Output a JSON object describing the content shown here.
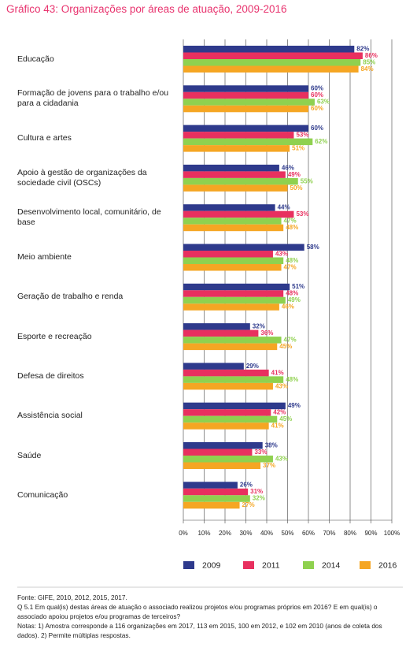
{
  "chart_data": {
    "type": "hbar",
    "title": "Gráfico 43: Organizações por áreas de atuação, 2009-2016",
    "categories": [
      "Educação",
      "Formação de jovens para o trabalho e/ou para a cidadania",
      "Cultura e artes",
      "Apoio à gestão de organizações da sociedade civil (OSCs)",
      "Desenvolvimento local, comunitário, de base",
      "Meio ambiente",
      "Geração de trabalho e renda",
      "Esporte e recreação",
      "Defesa de direitos",
      "Assistência social",
      "Saúde",
      "Comunicação"
    ],
    "series": [
      {
        "name": "2009",
        "color": "#2e3a8c",
        "values": [
          82,
          60,
          60,
          46,
          44,
          58,
          51,
          32,
          29,
          49,
          38,
          26
        ],
        "value_labels": [
          "82%",
          "60%",
          "60%",
          "46%",
          "44%",
          "58%",
          "51%",
          "32%",
          "29%",
          "49%",
          "38%",
          "26%"
        ]
      },
      {
        "name": "2011",
        "color": "#e8305f",
        "values": [
          86,
          60,
          53,
          49,
          53,
          43,
          48,
          36,
          41,
          42,
          33,
          31
        ],
        "value_labels": [
          "86%",
          "60%",
          "53%",
          "49%",
          "53%",
          "43%",
          "48%",
          "36%",
          "41%",
          "42%",
          "33%",
          "31%"
        ]
      },
      {
        "name": "2014",
        "color": "#8fd14f",
        "values": [
          85,
          63,
          62,
          55,
          47,
          48,
          49,
          47,
          48,
          45,
          43,
          32
        ],
        "value_labels": [
          "85%",
          "63%",
          "62%",
          "55%",
          "47%",
          "48%",
          "49%",
          "47%",
          "48%",
          "45%",
          "43%",
          "32%"
        ]
      },
      {
        "name": "2016",
        "color": "#f5a623",
        "values": [
          84,
          60,
          51,
          50,
          48,
          47,
          46,
          45,
          43,
          41,
          37,
          27
        ],
        "value_labels": [
          "84%",
          "60%",
          "51%",
          "50%",
          "48%",
          "47%",
          "46%",
          "45%",
          "43%",
          "41%",
          "37%",
          "27%"
        ]
      }
    ],
    "xlim": [
      0,
      100
    ],
    "xticks": [
      {
        "value": 0,
        "label": "0%"
      },
      {
        "value": 10,
        "label": "10%"
      },
      {
        "value": 20,
        "label": "20%"
      },
      {
        "value": 30,
        "label": "30%"
      },
      {
        "value": 40,
        "label": "40%"
      },
      {
        "value": 50,
        "label": "50%"
      },
      {
        "value": 60,
        "label": "60%"
      },
      {
        "value": 70,
        "label": "70%"
      },
      {
        "value": 80,
        "label": "80%"
      },
      {
        "value": 90,
        "label": "90%"
      },
      {
        "value": 100,
        "label": "100%"
      }
    ],
    "grid": true,
    "legend": "bottom",
    "notes": [
      "Fonte: GIFE, 2010, 2012, 2015, 2017.",
      "Q 5.1 Em qual(is) destas áreas de atuação o associado realizou projetos e/ou programas próprios em 2016? E em qual(is) o associado apoiou projetos e/ou programas de terceiros?",
      "Notas: 1) Amostra corresponde a 116 organizações em 2017, 113 em 2015, 100 em 2012, e 102 em 2010 (anos de coleta dos dados). 2) Permite múltiplas respostas."
    ]
  }
}
